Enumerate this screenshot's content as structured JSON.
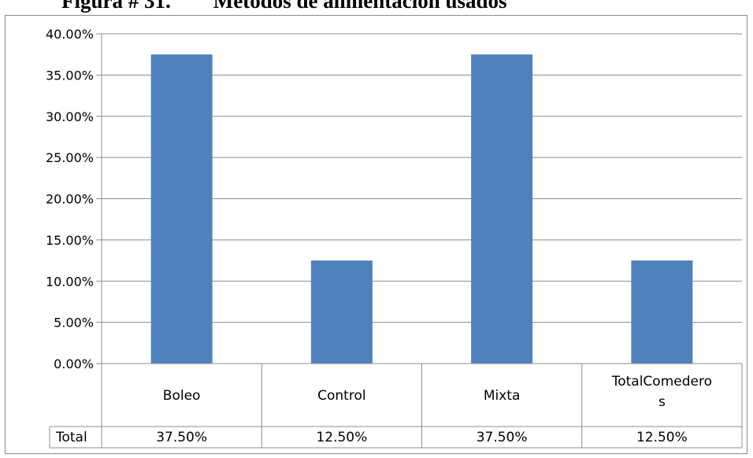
{
  "caption": "Figura # 31.        Métodos de alimentación usados",
  "chart_data": {
    "type": "bar",
    "title": "",
    "xlabel": "",
    "ylabel": "",
    "categories": [
      "Boleo",
      "Control",
      "Mixta",
      "TotalComederos"
    ],
    "category_lines": [
      [
        "Boleo"
      ],
      [
        "Control"
      ],
      [
        "Mixta"
      ],
      [
        "TotalComedero",
        "s"
      ]
    ],
    "series": [
      {
        "name": "Total",
        "values": [
          37.5,
          12.5,
          37.5,
          12.5
        ],
        "labels": [
          "37.50%",
          "12.50%",
          "37.50%",
          "12.50%"
        ]
      }
    ],
    "ylim": [
      0,
      40
    ],
    "ytick_values": [
      0,
      5,
      10,
      15,
      20,
      25,
      30,
      35,
      40
    ],
    "ytick_labels": [
      "0.00%",
      "5.00%",
      "10.00%",
      "15.00%",
      "20.00%",
      "25.00%",
      "30.00%",
      "35.00%",
      "40.00%"
    ],
    "grid": true,
    "data_table": true,
    "bar_color": "#4f81bd"
  }
}
